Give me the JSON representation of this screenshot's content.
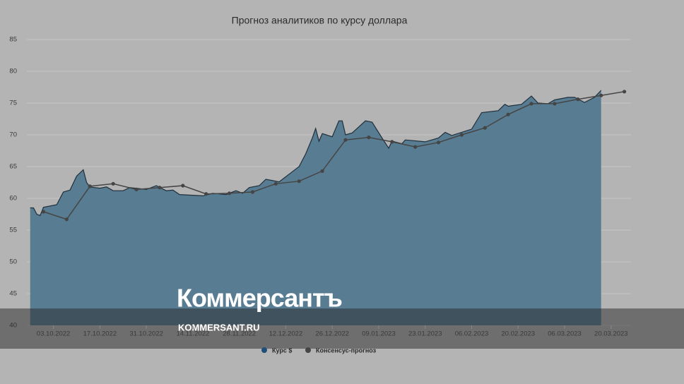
{
  "chart_data": {
    "type": "line",
    "title": "Прогноз аналитиков по курсу доллара",
    "xlim": [
      "25.09.2022",
      "26.03.2023"
    ],
    "xticks": [
      "03.10.2022",
      "17.10.2022",
      "31.10.2022",
      "14.11.2022",
      "28.11.2022",
      "12.12.2022",
      "26.12.2022",
      "09.01.2023",
      "23.01.2023",
      "06.02.2023",
      "20.02.2023",
      "06.03.2023",
      "20.03.2023"
    ],
    "ylim": [
      40,
      85
    ],
    "yticks": [
      40,
      45,
      50,
      55,
      60,
      65,
      70,
      75,
      80,
      85
    ],
    "grid": true,
    "series": [
      {
        "name": "Курс $",
        "kind": "area",
        "color": "#587c92",
        "line_color": "#1f2f3a",
        "x": [
          "26.09.2022",
          "27.09.2022",
          "28.09.2022",
          "29.09.2022",
          "30.09.2022",
          "04.10.2022",
          "06.10.2022",
          "08.10.2022",
          "10.10.2022",
          "12.10.2022",
          "13.10.2022",
          "14.10.2022",
          "17.10.2022",
          "19.10.2022",
          "21.10.2022",
          "24.10.2022",
          "26.10.2022",
          "31.10.2022",
          "03.11.2022",
          "06.11.2022",
          "08.11.2022",
          "10.11.2022",
          "17.11.2022",
          "20.11.2022",
          "24.11.2022",
          "27.11.2022",
          "29.11.2022",
          "01.12.2022",
          "04.12.2022",
          "06.12.2022",
          "10.12.2022",
          "14.12.2022",
          "16.12.2022",
          "18.12.2022",
          "20.12.2022",
          "21.12.2022",
          "22.12.2022",
          "23.12.2022",
          "26.12.2022",
          "28.12.2022",
          "29.12.2022",
          "30.12.2022",
          "01.01.2023",
          "05.01.2023",
          "07.01.2023",
          "10.01.2023",
          "12.01.2023",
          "13.01.2023",
          "16.01.2023",
          "17.01.2023",
          "23.01.2023",
          "27.01.2023",
          "29.01.2023",
          "31.01.2023",
          "06.02.2023",
          "09.02.2023",
          "14.02.2023",
          "16.02.2023",
          "17.02.2023",
          "21.02.2023",
          "24.02.2023",
          "26.02.2023",
          "01.03.2023",
          "03.03.2023",
          "07.03.2023",
          "09.03.2023",
          "12.03.2023",
          "15.03.2023",
          "17.03.2023"
        ],
        "values": [
          58.5,
          58.5,
          57.5,
          57.3,
          58.6,
          59.0,
          61.0,
          61.3,
          63.5,
          64.5,
          62.5,
          61.8,
          61.6,
          61.8,
          61.2,
          61.2,
          61.7,
          61.4,
          62.0,
          61.2,
          61.3,
          60.6,
          60.4,
          60.8,
          60.6,
          61.2,
          60.8,
          61.7,
          62.0,
          63.0,
          62.6,
          64.2,
          65.0,
          67.0,
          69.5,
          71.0,
          69.0,
          70.2,
          69.7,
          72.2,
          72.2,
          70.0,
          70.3,
          72.2,
          72.0,
          69.5,
          67.9,
          69.0,
          68.6,
          69.2,
          68.9,
          69.5,
          70.4,
          69.9,
          70.9,
          73.5,
          73.8,
          74.8,
          74.5,
          74.8,
          76.1,
          75.0,
          74.9,
          75.5,
          75.9,
          75.9,
          75.1,
          75.9,
          77.0
        ]
      },
      {
        "name": "Консенсус-прогноз",
        "kind": "line",
        "color": "#454545",
        "x": [
          "30.09.2022",
          "07.10.2022",
          "14.10.2022",
          "21.10.2022",
          "28.10.2022",
          "04.11.2022",
          "11.11.2022",
          "18.11.2022",
          "25.11.2022",
          "02.12.2022",
          "09.12.2022",
          "16.12.2022",
          "23.12.2022",
          "30.12.2022",
          "06.01.2023",
          "13.01.2023",
          "20.01.2023",
          "27.01.2023",
          "03.02.2023",
          "10.02.2023",
          "17.02.2023",
          "24.02.2023",
          "03.03.2023",
          "10.03.2023",
          "17.03.2023",
          "24.03.2023"
        ],
        "values": [
          57.9,
          56.7,
          61.9,
          62.3,
          61.4,
          61.7,
          62.0,
          60.7,
          60.8,
          61.0,
          62.3,
          62.7,
          64.3,
          69.2,
          69.6,
          68.9,
          68.1,
          68.8,
          70.0,
          71.1,
          73.2,
          74.9,
          74.9,
          75.6,
          76.2,
          76.8
        ]
      }
    ]
  },
  "watermark": {
    "logo": "Коммерсантъ",
    "url": "KOMMERSANT.RU"
  }
}
